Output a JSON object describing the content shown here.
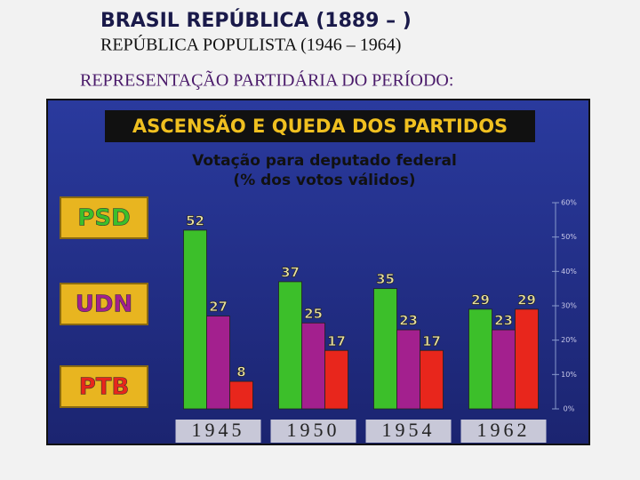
{
  "header": {
    "title": "BRASIL REPÚBLICA (1889 – )",
    "subtitle": "REPÚBLICA POPULISTA (1946 – 1964)",
    "heading": "REPRESENTAÇÃO PARTIDÁRIA DO PERÍODO:"
  },
  "chart_data": {
    "type": "bar",
    "title": "ASCENSÃO E QUEDA DOS PARTIDOS",
    "subtitle": [
      "Votação para deputado federal",
      "(% dos votos válidos)"
    ],
    "categories": [
      "1945",
      "1950",
      "1954",
      "1962"
    ],
    "series": [
      {
        "name": "PSD",
        "color": "#3cbf2a",
        "values": [
          52,
          37,
          35,
          29
        ]
      },
      {
        "name": "UDN",
        "color": "#a3208e",
        "values": [
          27,
          25,
          23,
          23
        ]
      },
      {
        "name": "PTB",
        "color": "#e8261c",
        "values": [
          8,
          17,
          17,
          29
        ]
      }
    ],
    "ylim": [
      0,
      60
    ],
    "yticks": [
      {
        "value": 0,
        "label": "0%"
      },
      {
        "value": 10,
        "label": "10%"
      },
      {
        "value": 20,
        "label": "20%"
      },
      {
        "value": 30,
        "label": "30%"
      },
      {
        "value": 40,
        "label": "40%"
      },
      {
        "value": 50,
        "label": "50%"
      },
      {
        "value": 60,
        "label": "60%"
      }
    ],
    "grid": false
  }
}
